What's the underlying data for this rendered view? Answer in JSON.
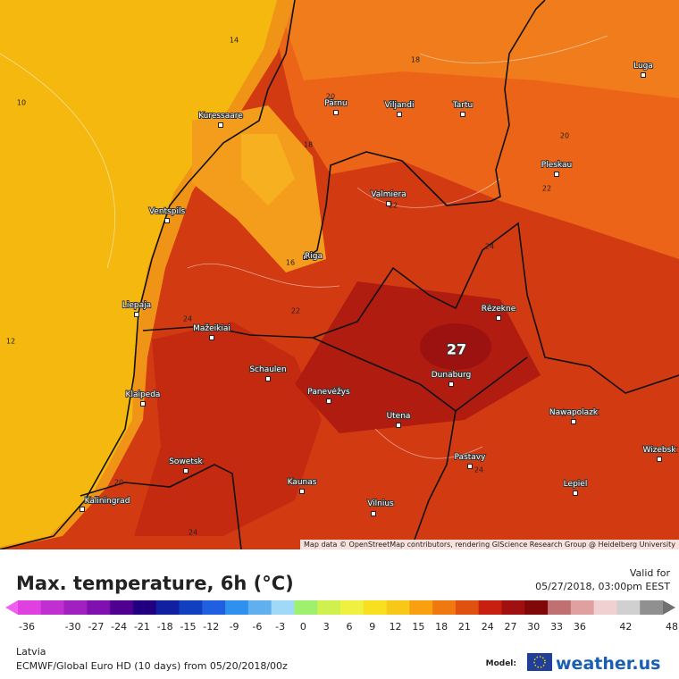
{
  "map": {
    "cities": [
      "Kuressaare",
      "Pärnu",
      "Viljandi",
      "Tartu",
      "Luga",
      "Pleskau",
      "Valmiera",
      "Ventspils",
      "Riga",
      "Liepaja",
      "Rēzekne",
      "Mažeikiai",
      "Schaulen",
      "Panevėžys",
      "Dunaburg",
      "Klaipeda",
      "Utena",
      "Nawapolazk",
      "Sowetsk",
      "Pastavy",
      "Wizebsk",
      "Kaunas",
      "Lepiel",
      "Kaliningrad",
      "Vilnius"
    ],
    "contour_labels": [
      14,
      10,
      18,
      20,
      18,
      16,
      22,
      20,
      22,
      24,
      22,
      24,
      12,
      24,
      20,
      24
    ],
    "max_label": 27,
    "attribution": "Map data © OpenStreetMap contributors, rendering GIScience Research Group @ Heidelberg University"
  },
  "header": {
    "title": "Max. temperature, 6h (°C)",
    "valid_for": "Valid for",
    "valid_time": "05/27/2018, 03:00pm EEST"
  },
  "legend": {
    "ticks": [
      -36,
      -30,
      -27,
      -24,
      -21,
      -18,
      -15,
      -12,
      -9,
      -6,
      -3,
      0,
      3,
      6,
      9,
      12,
      15,
      18,
      21,
      24,
      27,
      30,
      33,
      36,
      42,
      48
    ],
    "colors": [
      "#f060f0",
      "#e040e0",
      "#c030d0",
      "#a020c0",
      "#8010b0",
      "#500090",
      "#200080",
      "#1020a0",
      "#1040c0",
      "#2060e0",
      "#3090f0",
      "#60b0f0",
      "#a0d8f8",
      "#a0f070",
      "#d0f050",
      "#f0f040",
      "#f8e020",
      "#f8c818",
      "#f8a010",
      "#f07810",
      "#e05010",
      "#c82010",
      "#a01010",
      "#800808",
      "#c07070",
      "#e0a0a0",
      "#f0d0d0",
      "#d0d0d0",
      "#909090",
      "#707070"
    ]
  },
  "footer": {
    "region": "Latvia",
    "model_line": "ECMWF/Global Euro HD (10 days) from 05/20/2018/00z",
    "model_label": "Model:",
    "brand": "weather.us"
  }
}
